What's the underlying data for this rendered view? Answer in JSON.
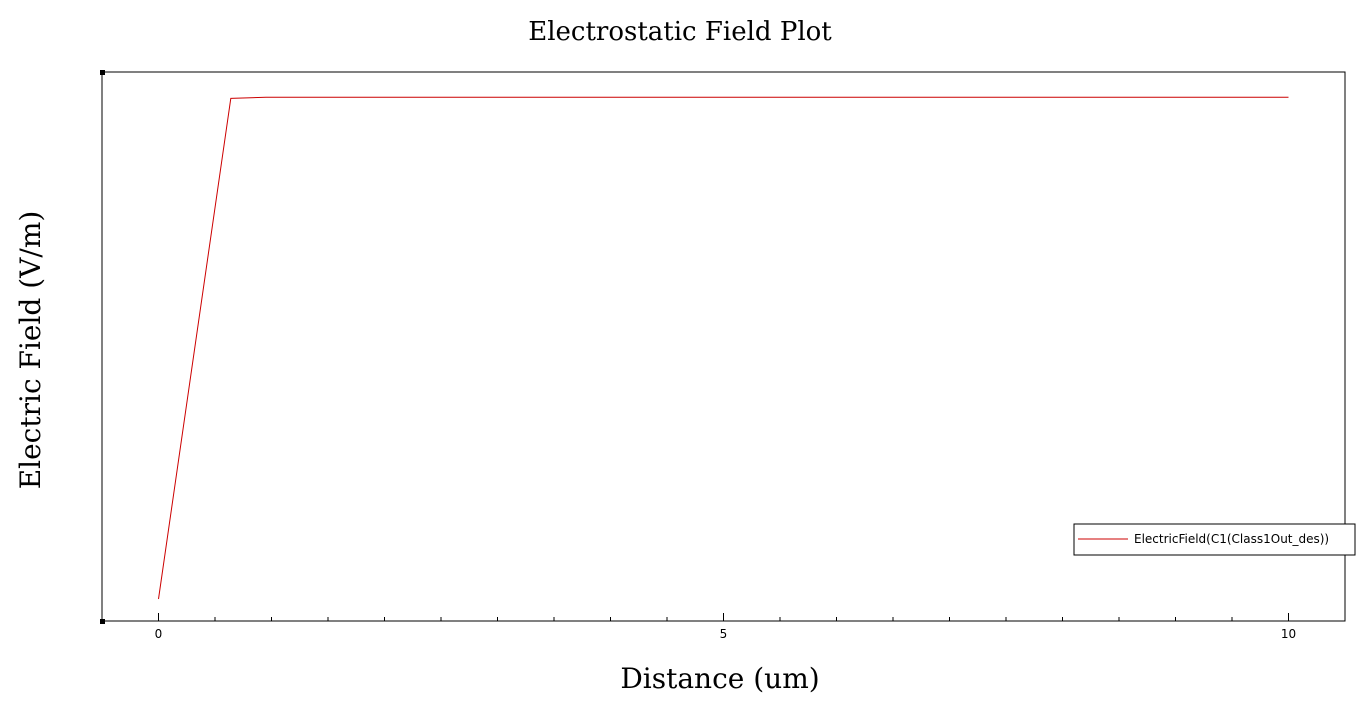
{
  "chart_data": {
    "type": "line",
    "title": "Electrostatic Field Plot",
    "xlabel": "Distance (um)",
    "ylabel": "Electric Field (V/m)",
    "xlim": [
      -0.5,
      10.5
    ],
    "ylim": [
      -0.04,
      0.96
    ],
    "x_ticks": [
      0,
      5,
      10
    ],
    "x_tick_labels": [
      "0",
      "5",
      "10"
    ],
    "x_minor_step": 0.5,
    "grid": false,
    "legend_position": "bottom-right",
    "series": [
      {
        "name": "ElectricField(C1(Class1Out_des))",
        "color": "#cc0000",
        "x": [
          0,
          0.64,
          0.95,
          10
        ],
        "y": [
          0.0,
          0.912,
          0.914,
          0.914
        ]
      }
    ]
  }
}
